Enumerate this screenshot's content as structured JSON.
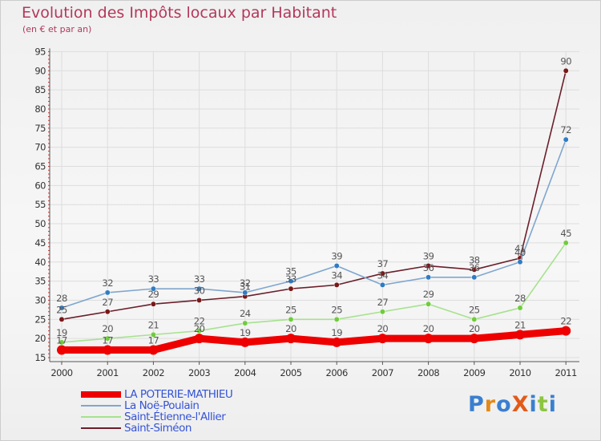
{
  "chart_data": {
    "type": "line",
    "title": "Evolution des Impôts locaux par Habitant",
    "subtitle": "(en € et par an)",
    "xlabel": "",
    "ylabel": "",
    "ylim": [
      15,
      95
    ],
    "ytick_step": 5,
    "yticks": [
      "15",
      "20",
      "25",
      "30",
      "35",
      "40",
      "45",
      "50",
      "55",
      "60",
      "65",
      "70",
      "75",
      "80",
      "85",
      "90",
      "95"
    ],
    "categories": [
      "2000",
      "2001",
      "2002",
      "2003",
      "2004",
      "2005",
      "2006",
      "2007",
      "2008",
      "2009",
      "2010",
      "2011"
    ],
    "grid": true,
    "legend_position": "bottom-left",
    "series": [
      {
        "name": "Saint-Siméon",
        "color": "#6b1f2a",
        "marker": "#7a1818",
        "values": [
          25,
          27,
          29,
          30,
          31,
          33,
          34,
          37,
          39,
          38,
          41,
          90
        ]
      },
      {
        "name": "La Noë-Poulain",
        "color": "#7fa6cf",
        "marker": "#2f7cc4",
        "values": [
          28,
          32,
          33,
          33,
          32,
          35,
          39,
          34,
          36,
          36,
          40,
          72
        ]
      },
      {
        "name": "Saint-Étienne-l'Allier",
        "color": "#a6e28e",
        "marker": "#70cc3c",
        "values": [
          19,
          20,
          21,
          22,
          24,
          25,
          25,
          27,
          29,
          25,
          28,
          45
        ]
      },
      {
        "name": "LA POTERIE-MATHIEU",
        "color": "#ee0000",
        "marker": "#ee0000",
        "values": [
          17,
          17,
          17,
          20,
          19,
          20,
          19,
          20,
          20,
          20,
          21,
          22
        ]
      }
    ],
    "legend_order": [
      "LA POTERIE-MATHIEU",
      "La Noë-Poulain",
      "Saint-Étienne-l'Allier",
      "Saint-Siméon"
    ],
    "label_text_color": "#555555",
    "legend_text_color": "#3553d6"
  },
  "watermark": {
    "text": "ProXiti"
  }
}
